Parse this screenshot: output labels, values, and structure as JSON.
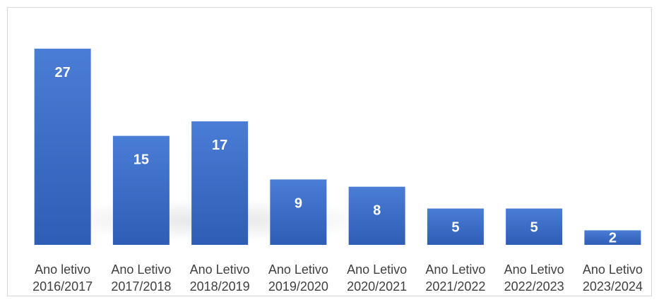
{
  "chart_data": {
    "type": "bar",
    "title": "",
    "xlabel": "",
    "ylabel": "",
    "categories": [
      [
        "Ano letivo",
        "2016/2017"
      ],
      [
        "Ano Letivo",
        "2017/2018"
      ],
      [
        "Ano Letivo",
        "2018/2019"
      ],
      [
        "Ano Letivo",
        "2019/2020"
      ],
      [
        "Ano Letivo",
        "2020/2021"
      ],
      [
        "Ano Letivo",
        "2021/2022"
      ],
      [
        "Ano Letivo",
        "2022/2023"
      ],
      [
        "Ano Letivo",
        "2023/2024"
      ]
    ],
    "values": [
      27,
      15,
      17,
      9,
      8,
      5,
      5,
      2
    ],
    "ylim": [
      0,
      27
    ],
    "grid": false,
    "legend": "none",
    "colors": {
      "bar_top": "#4A7DD6",
      "bar_bottom": "#2E5DB5",
      "data_label": "#ffffff",
      "category_label": "#404040"
    }
  }
}
